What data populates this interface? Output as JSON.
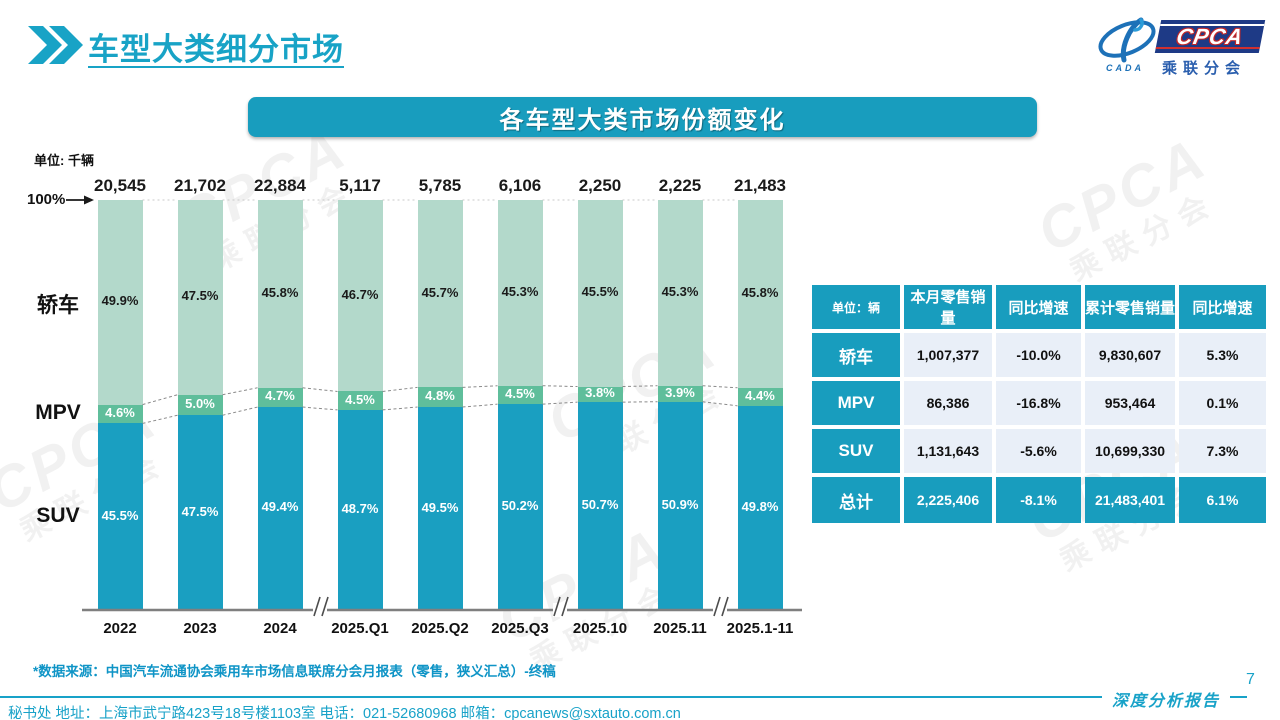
{
  "page": {
    "title": "车型大类细分市场",
    "page_number": "7",
    "report_label": "深度分析报告",
    "source_note": "*数据来源：中国汽车流通协会乘用车市场信息联席分会月报表（零售，狭义汇总）-终稿",
    "footer_contact": "秘书处  地址：上海市武宁路423号18号楼1103室 电话：021-52680968  邮箱：cpcanews@sxtauto.com.cn"
  },
  "logo": {
    "cpca": "CPCA",
    "cada": "CADA",
    "subtitle": "乘联分会"
  },
  "chart_banner": "各车型大类市场份额变化",
  "colors": {
    "teal": "#189DBE",
    "sedan_segment": "#B3D9CB",
    "mpv_segment": "#5FBE9B",
    "suv_segment": "#1A9FC1",
    "table_cell": "#E9EFF8"
  },
  "watermark_text": {
    "line1": "CPCA",
    "line2": "乘联分会"
  },
  "chart_data": {
    "type": "bar",
    "subtype": "stacked-100-percent",
    "unit_label": "单位: 千辆",
    "axis_top_label": "100%",
    "categories": [
      "2022",
      "2023",
      "2024",
      "2025.Q1",
      "2025.Q2",
      "2025.Q3",
      "2025.10",
      "2025.11",
      "2025.1-11"
    ],
    "totals": [
      "20,545",
      "21,702",
      "22,884",
      "5,117",
      "5,785",
      "6,106",
      "2,250",
      "2,225",
      "21,483"
    ],
    "series": [
      {
        "name": "轿车",
        "color": "#B3D9CB",
        "label_color": "#1a1a1a",
        "values": [
          49.9,
          47.5,
          45.8,
          46.7,
          45.7,
          45.3,
          45.5,
          45.3,
          45.8
        ]
      },
      {
        "name": "MPV",
        "color": "#5FBE9B",
        "label_color": "#ffffff",
        "values": [
          4.6,
          5.0,
          4.7,
          4.5,
          4.8,
          4.5,
          3.8,
          3.9,
          4.4
        ]
      },
      {
        "name": "SUV",
        "color": "#1A9FC1",
        "label_color": "#ffffff",
        "values": [
          45.5,
          47.5,
          49.4,
          48.7,
          49.5,
          50.2,
          50.7,
          50.9,
          49.8
        ]
      }
    ],
    "axis_break_after_indices": [
      2,
      5,
      7
    ],
    "ylim": [
      0,
      100
    ],
    "legend_position": "left-category-labels"
  },
  "table": {
    "unit_header": "单位：辆",
    "columns": [
      "本月零售销量",
      "同比增速",
      "累计零售销量",
      "同比增速"
    ],
    "rows": [
      {
        "label": "轿车",
        "cells": [
          "1,007,377",
          "-10.0%",
          "9,830,607",
          "5.3%"
        ],
        "total": false
      },
      {
        "label": "MPV",
        "cells": [
          "86,386",
          "-16.8%",
          "953,464",
          "0.1%"
        ],
        "total": false
      },
      {
        "label": "SUV",
        "cells": [
          "1,131,643",
          "-5.6%",
          "10,699,330",
          "7.3%"
        ],
        "total": false
      },
      {
        "label": "总计",
        "cells": [
          "2,225,406",
          "-8.1%",
          "21,483,401",
          "6.1%"
        ],
        "total": true
      }
    ]
  }
}
